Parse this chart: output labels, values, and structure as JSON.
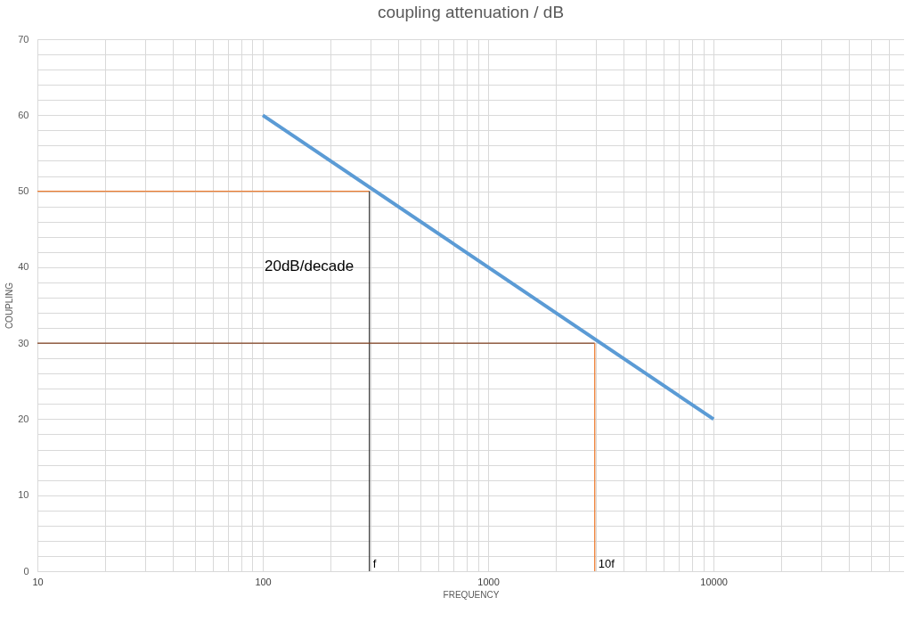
{
  "chart_data": {
    "type": "line",
    "title": "coupling attenuation / dB",
    "xlabel": "FREQUENCY",
    "ylabel": "COUPLING",
    "log": "x",
    "grid": true,
    "marker": "none",
    "line_style": "solid",
    "xlim": [
      10,
      70000
    ],
    "ylim": [
      0,
      70
    ],
    "xticks": [
      10,
      {
        "value": 20,
        "label": null
      },
      {
        "value": 30,
        "label": null
      },
      {
        "value": 40,
        "label": null
      },
      {
        "value": 50,
        "label": null
      },
      {
        "value": 60,
        "label": null
      },
      {
        "value": 70,
        "label": null
      },
      {
        "value": 80,
        "label": null
      },
      {
        "value": 90,
        "label": null
      },
      100,
      {
        "value": 200,
        "label": null
      },
      {
        "value": 300,
        "label": null
      },
      {
        "value": 400,
        "label": null
      },
      {
        "value": 500,
        "label": null
      },
      {
        "value": 600,
        "label": null
      },
      {
        "value": 700,
        "label": null
      },
      {
        "value": 800,
        "label": null
      },
      {
        "value": 900,
        "label": null
      },
      1000,
      {
        "value": 2000,
        "label": null
      },
      {
        "value": 3000,
        "label": null
      },
      {
        "value": 4000,
        "label": null
      },
      {
        "value": 5000,
        "label": null
      },
      {
        "value": 6000,
        "label": null
      },
      {
        "value": 7000,
        "label": null
      },
      {
        "value": 8000,
        "label": null
      },
      {
        "value": 9000,
        "label": null
      },
      10000,
      {
        "value": 20000,
        "label": null
      },
      {
        "value": 30000,
        "label": null
      },
      {
        "value": 40000,
        "label": null
      },
      {
        "value": 50000,
        "label": null
      },
      {
        "value": 60000,
        "label": null
      }
    ],
    "yticks": [
      0,
      {
        "value": 2,
        "label": null
      },
      {
        "value": 4,
        "label": null
      },
      {
        "value": 6,
        "label": null
      },
      {
        "value": 8,
        "label": null
      },
      10,
      {
        "value": 12,
        "label": null
      },
      {
        "value": 14,
        "label": null
      },
      {
        "value": 16,
        "label": null
      },
      {
        "value": 18,
        "label": null
      },
      20,
      {
        "value": 22,
        "label": null
      },
      {
        "value": 24,
        "label": null
      },
      {
        "value": 26,
        "label": null
      },
      {
        "value": 28,
        "label": null
      },
      30,
      {
        "value": 32,
        "label": null
      },
      {
        "value": 34,
        "label": null
      },
      {
        "value": 36,
        "label": null
      },
      {
        "value": 38,
        "label": null
      },
      40,
      {
        "value": 42,
        "label": null
      },
      {
        "value": 44,
        "label": null
      },
      {
        "value": 46,
        "label": null
      },
      {
        "value": 48,
        "label": null
      },
      50,
      {
        "value": 52,
        "label": null
      },
      {
        "value": 54,
        "label": null
      },
      {
        "value": 56,
        "label": null
      },
      {
        "value": 58,
        "label": null
      },
      60,
      {
        "value": 62,
        "label": null
      },
      {
        "value": 64,
        "label": null
      },
      {
        "value": 66,
        "label": null
      },
      {
        "value": 68,
        "label": null
      },
      70
    ],
    "series": [
      {
        "x": [
          100,
          10000
        ],
        "values": [
          60,
          20
        ],
        "color": "#5b9bd5"
      },
      {
        "x": [
          10,
          297
        ],
        "values": [
          50,
          50
        ],
        "color": "#ed7d31"
      },
      {
        "x": [
          297,
          297
        ],
        "values": [
          0,
          50
        ],
        "color": "#404040"
      },
      {
        "x": [
          10,
          2970
        ],
        "values": [
          30,
          30
        ],
        "color": "#7f3f1f"
      },
      {
        "x": [
          2970,
          2970
        ],
        "values": [
          0,
          30
        ],
        "color": "#ed7d31"
      }
    ],
    "annotations": [
      "20dB/decade",
      {
        "text": "f",
        "x": 297,
        "y": 0
      },
      {
        "text": "10f",
        "x": 2970,
        "y": 0
      }
    ]
  }
}
